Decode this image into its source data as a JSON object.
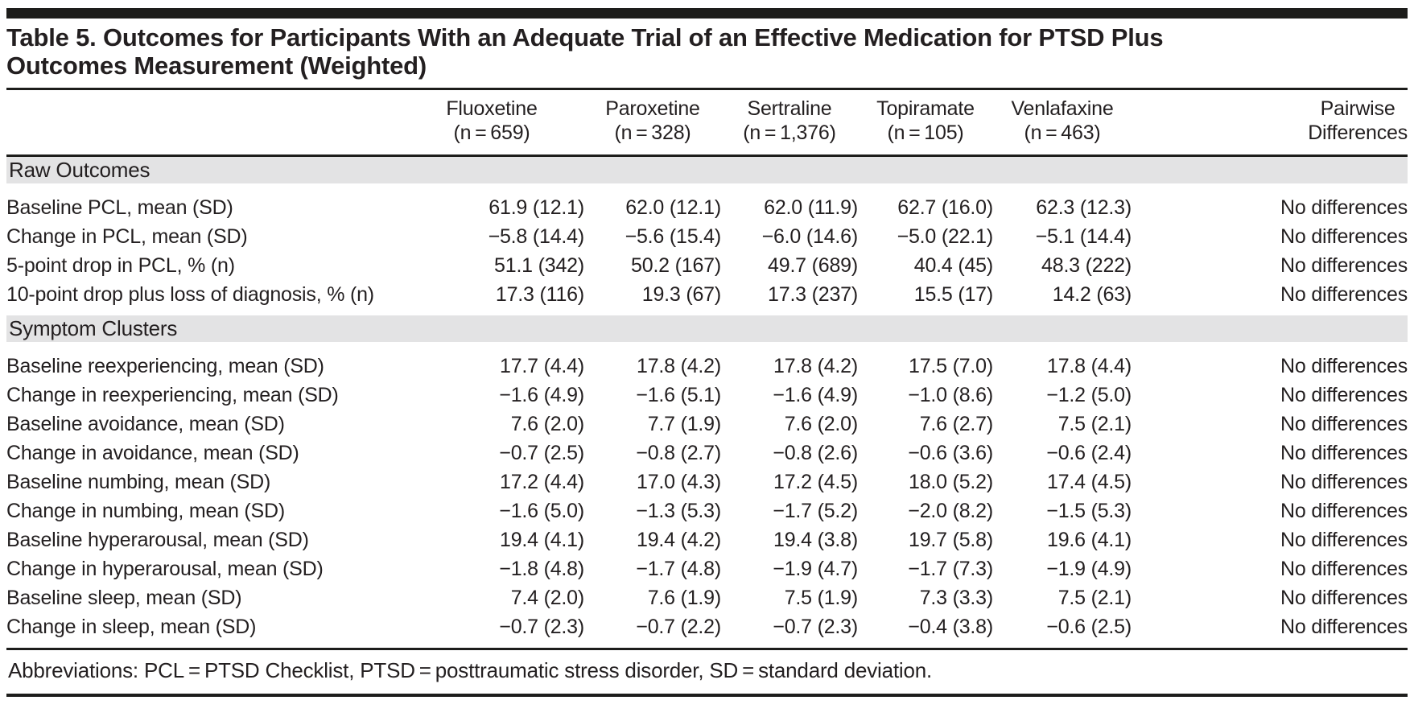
{
  "table": {
    "title_line1": "Table 5. Outcomes for Participants With an Adequate Trial of an Effective Medication for PTSD Plus",
    "title_line2": "Outcomes Measurement (Weighted)",
    "columns": [
      {
        "name": "Fluoxetine",
        "n": "(n = 659)"
      },
      {
        "name": "Paroxetine",
        "n": "(n = 328)"
      },
      {
        "name": "Sertraline",
        "n": "(n = 1,376)"
      },
      {
        "name": "Topiramate",
        "n": "(n = 105)"
      },
      {
        "name": "Venlafaxine",
        "n": "(n = 463)"
      },
      {
        "name": "Pairwise",
        "n": "Differences"
      }
    ],
    "sections": [
      {
        "header": "Raw Outcomes",
        "rows": [
          {
            "label": "Baseline PCL, mean (SD)",
            "values": [
              "61.9 (12.1)",
              "62.0 (12.1)",
              "62.0 (11.9)",
              "62.7 (16.0)",
              "62.3 (12.3)"
            ],
            "pairwise": "No differences"
          },
          {
            "label": "Change in PCL, mean (SD)",
            "values": [
              "−5.8 (14.4)",
              "−5.6 (15.4)",
              "−6.0 (14.6)",
              "−5.0 (22.1)",
              "−5.1 (14.4)"
            ],
            "pairwise": "No differences"
          },
          {
            "label": "5-point drop in PCL, % (n)",
            "values": [
              "51.1 (342)",
              "50.2 (167)",
              "49.7 (689)",
              "40.4 (45)",
              "48.3 (222)"
            ],
            "pairwise": "No differences"
          },
          {
            "label": "10-point drop plus loss of diagnosis, % (n)",
            "values": [
              "17.3 (116)",
              "19.3 (67)",
              "17.3 (237)",
              "15.5 (17)",
              "14.2 (63)"
            ],
            "pairwise": "No differences"
          }
        ]
      },
      {
        "header": "Symptom Clusters",
        "rows": [
          {
            "label": "Baseline reexperiencing, mean (SD)",
            "values": [
              "17.7 (4.4)",
              "17.8 (4.2)",
              "17.8 (4.2)",
              "17.5 (7.0)",
              "17.8 (4.4)"
            ],
            "pairwise": "No differences"
          },
          {
            "label": "Change in reexperiencing, mean (SD)",
            "values": [
              "−1.6 (4.9)",
              "−1.6 (5.1)",
              "−1.6 (4.9)",
              "−1.0 (8.6)",
              "−1.2 (5.0)"
            ],
            "pairwise": "No differences"
          },
          {
            "label": "Baseline avoidance, mean (SD)",
            "values": [
              "7.6 (2.0)",
              "7.7 (1.9)",
              "7.6 (2.0)",
              "7.6 (2.7)",
              "7.5 (2.1)"
            ],
            "pairwise": "No differences"
          },
          {
            "label": "Change in avoidance, mean (SD)",
            "values": [
              "−0.7 (2.5)",
              "−0.8 (2.7)",
              "−0.8 (2.6)",
              "−0.6 (3.6)",
              "−0.6 (2.4)"
            ],
            "pairwise": "No differences"
          },
          {
            "label": "Baseline numbing, mean (SD)",
            "values": [
              "17.2 (4.4)",
              "17.0 (4.3)",
              "17.2 (4.5)",
              "18.0 (5.2)",
              "17.4 (4.5)"
            ],
            "pairwise": "No differences"
          },
          {
            "label": "Change in numbing, mean (SD)",
            "values": [
              "−1.6 (5.0)",
              "−1.3 (5.3)",
              "−1.7 (5.2)",
              "−2.0 (8.2)",
              "−1.5 (5.3)"
            ],
            "pairwise": "No differences"
          },
          {
            "label": "Baseline hyperarousal, mean (SD)",
            "values": [
              "19.4 (4.1)",
              "19.4 (4.2)",
              "19.4 (3.8)",
              "19.7 (5.8)",
              "19.6 (4.1)"
            ],
            "pairwise": "No differences"
          },
          {
            "label": "Change in hyperarousal, mean (SD)",
            "values": [
              "−1.8 (4.8)",
              "−1.7 (4.8)",
              "−1.9 (4.7)",
              "−1.7 (7.3)",
              "−1.9 (4.9)"
            ],
            "pairwise": "No differences"
          },
          {
            "label": "Baseline sleep, mean (SD)",
            "values": [
              "7.4 (2.0)",
              "7.6 (1.9)",
              "7.5 (1.9)",
              "7.3 (3.3)",
              "7.5 (2.1)"
            ],
            "pairwise": "No differences"
          },
          {
            "label": "Change in sleep, mean (SD)",
            "values": [
              "−0.7 (2.3)",
              "−0.7 (2.2)",
              "−0.7 (2.3)",
              "−0.4 (3.8)",
              "−0.6 (2.5)"
            ],
            "pairwise": "No differences"
          }
        ]
      }
    ],
    "footnote": "Abbreviations: PCL = PTSD Checklist, PTSD = posttraumatic stress disorder, SD = standard deviation."
  }
}
